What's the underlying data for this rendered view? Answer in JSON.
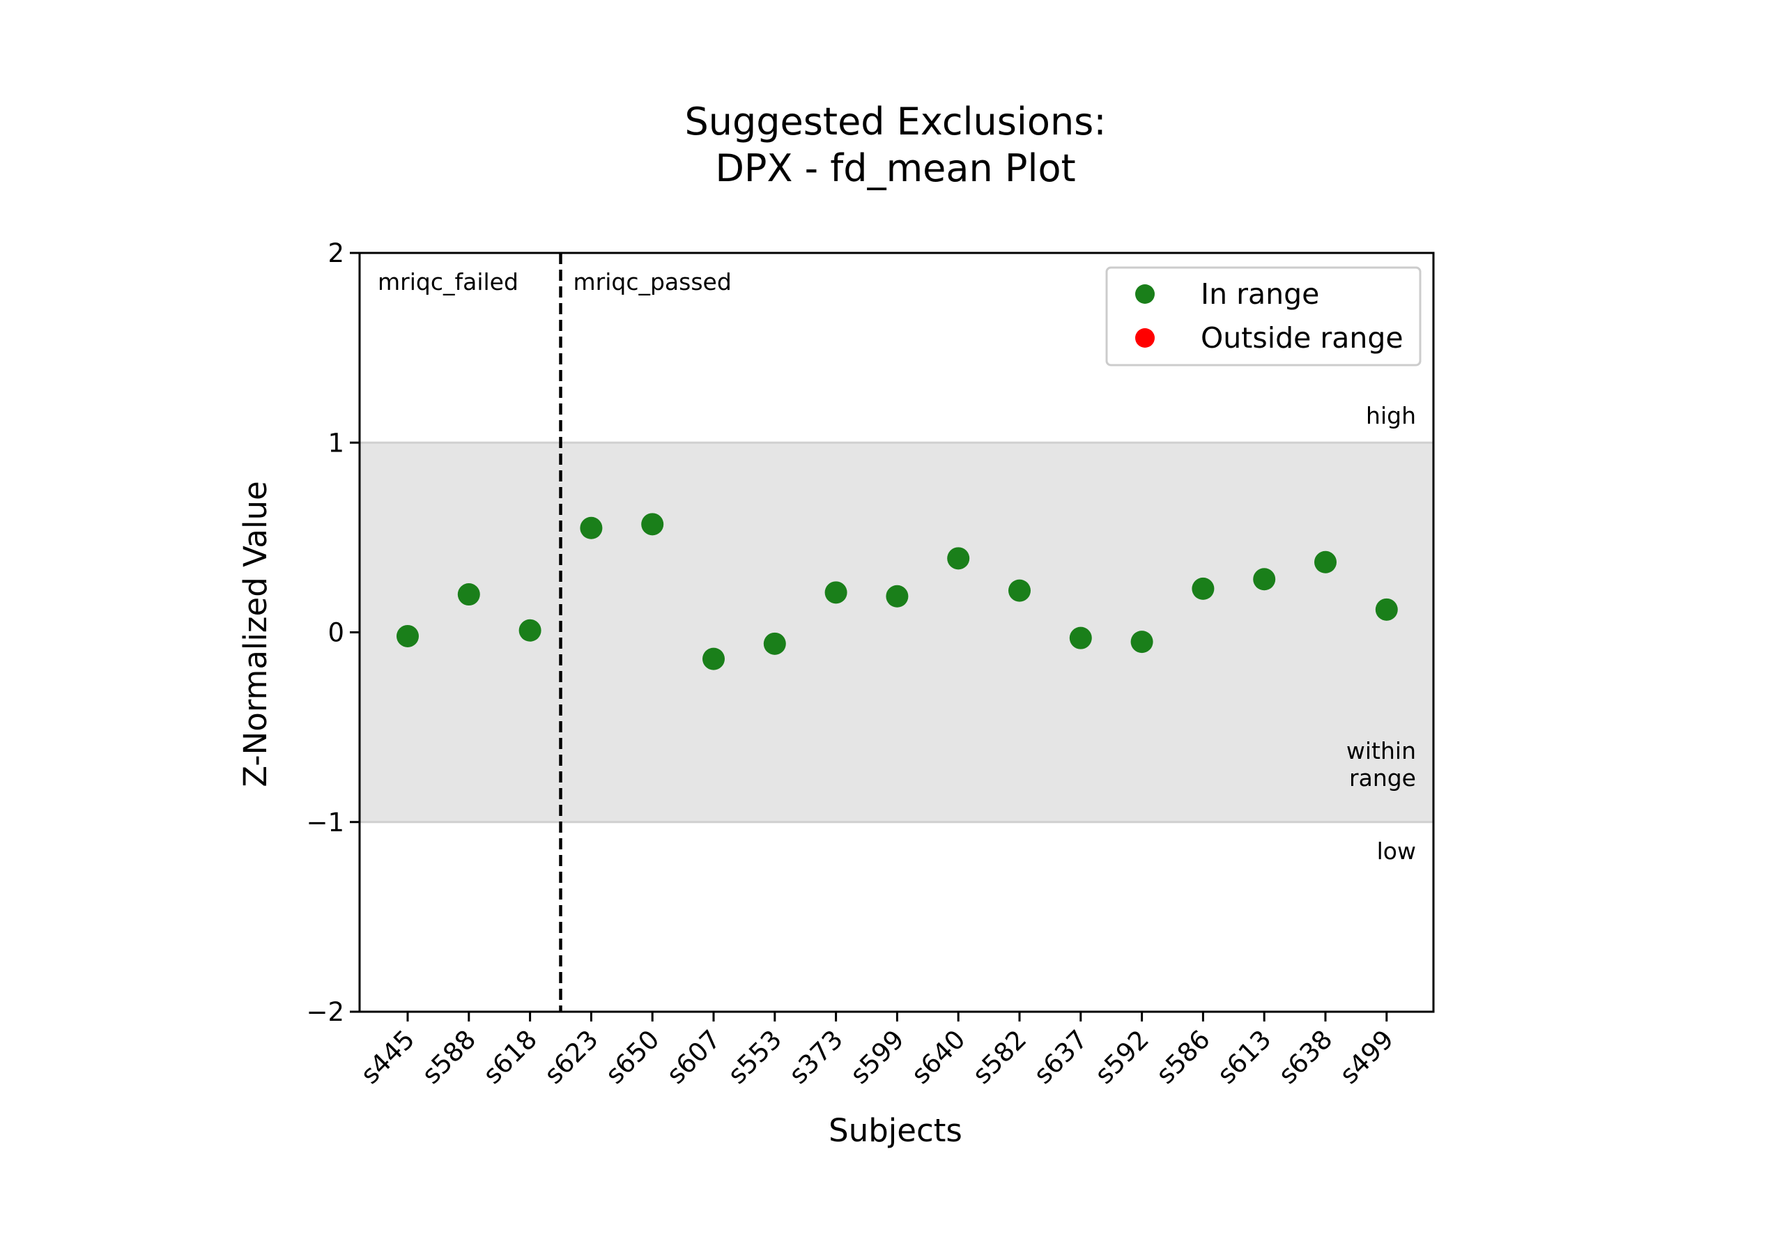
{
  "chart_data": {
    "type": "scatter",
    "title_lines": [
      "Suggested Exclusions:",
      "DPX - fd_mean Plot"
    ],
    "xlabel": "Subjects",
    "ylabel": "Z-Normalized Value",
    "ylim": [
      -2,
      2
    ],
    "yticks": [
      {
        "value": 2,
        "label": "2"
      },
      {
        "value": 1,
        "label": "1"
      },
      {
        "value": 0,
        "label": "0"
      },
      {
        "value": -1,
        "label": "−1"
      },
      {
        "value": -2,
        "label": "−2"
      }
    ],
    "categories": [
      "s445",
      "s588",
      "s618",
      "s623",
      "s650",
      "s607",
      "s553",
      "s373",
      "s599",
      "s640",
      "s582",
      "s637",
      "s592",
      "s586",
      "s613",
      "s638",
      "s499"
    ],
    "values": [
      -0.02,
      0.2,
      0.01,
      0.55,
      0.57,
      -0.14,
      -0.06,
      0.21,
      0.19,
      0.39,
      0.22,
      -0.03,
      -0.05,
      0.23,
      0.28,
      0.37,
      0.12
    ],
    "range_band": {
      "low": -1,
      "high": 1
    },
    "band_labels": {
      "high": "high",
      "within": [
        "within",
        "range"
      ],
      "low": "low"
    },
    "group_divider_after_index": 2,
    "group_labels": {
      "left": "mriqc_failed",
      "right": "mriqc_passed"
    },
    "grid": false,
    "legend": {
      "position": "top-right",
      "entries": [
        {
          "label": "In range",
          "color": "#1a7f1a"
        },
        {
          "label": "Outside range",
          "color": "#ff0000"
        }
      ]
    },
    "colors": {
      "in_range": "#1a7f1a",
      "outside_range": "#ff0000",
      "band": "#e5e5e5",
      "band_edge": "#d0d0d0"
    }
  }
}
